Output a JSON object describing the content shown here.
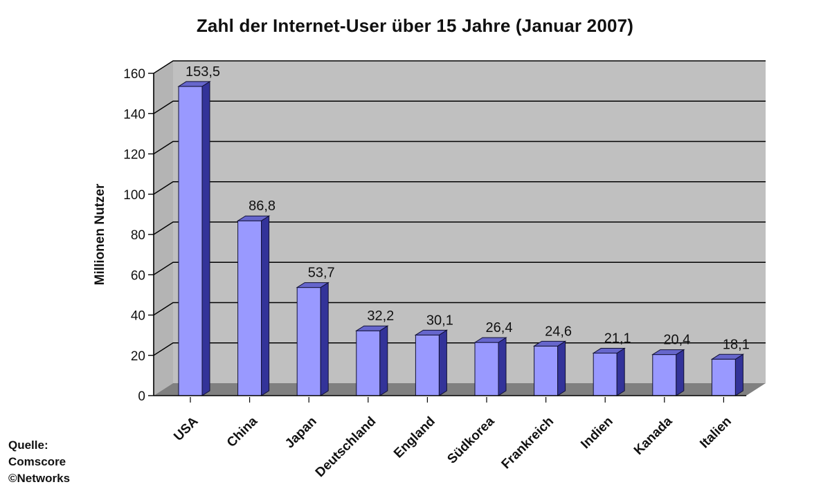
{
  "chart_data": {
    "type": "bar",
    "title": "Zahl der Internet-User über 15 Jahre (Januar 2007)",
    "xlabel": "",
    "ylabel": "Millionen Nutzer",
    "categories": [
      "USA",
      "China",
      "Japan",
      "Deutschland",
      "England",
      "Südkorea",
      "Frankreich",
      "Indien",
      "Kanada",
      "Italien"
    ],
    "values": [
      153.5,
      86.8,
      53.7,
      32.2,
      30.1,
      26.4,
      24.6,
      21.1,
      20.4,
      18.1
    ],
    "value_labels": [
      "153,5",
      "86,8",
      "53,7",
      "32,2",
      "30,1",
      "26,4",
      "24,6",
      "21,1",
      "20,4",
      "18,1"
    ],
    "ylim": [
      0,
      160
    ],
    "yticks": [
      0,
      20,
      40,
      60,
      80,
      100,
      120,
      140,
      160
    ],
    "grid": true,
    "three_d": true,
    "legend": "none",
    "colors": {
      "bar_front": "#9999ff",
      "bar_side": "#333399",
      "bar_top": "#6666cc",
      "plot_background": "#c0c0c0",
      "floor": "#808080",
      "gridline": "#000000",
      "axis": "#000000"
    }
  },
  "source_note": {
    "line1": "Quelle:",
    "line2": "Comscore",
    "line3": "©Networks"
  }
}
